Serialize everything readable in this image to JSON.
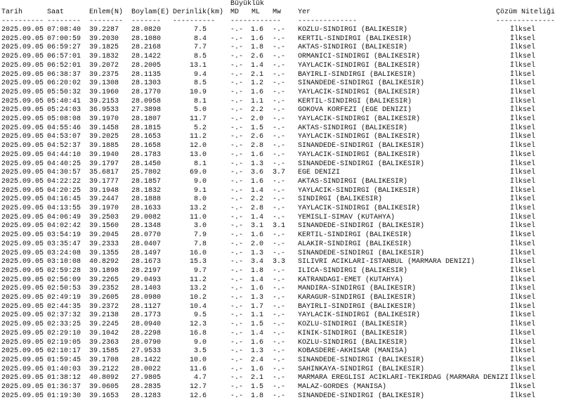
{
  "header": {
    "group_title": "Büyüklük",
    "columns": {
      "tarih": "Tarih",
      "saat": "Saat",
      "enlem": "Enlem(N)",
      "boylam": "Boylam(E)",
      "derinlik": "Derinlik(km)",
      "md": "MD",
      "ml": "ML",
      "mw": "Mw",
      "yer": "Yer",
      "cozum": "Çözüm Niteliği"
    },
    "dashes": {
      "tarih": "----------",
      "saat": "--------",
      "enlem": "--------",
      "boylam": "-------",
      "derinlik": "----------",
      "mag": "------------",
      "yer": "--------------",
      "cozum": "--------------"
    }
  },
  "rows": [
    [
      "2025.09.05",
      "07:08:40",
      "39.2287",
      "28.0820",
      "7.5",
      "-.-",
      "1.6",
      "-.-",
      "KOZLU-SINDIRGI (BALIKESIR)",
      "İlksel"
    ],
    [
      "2025.09.05",
      "07:00:59",
      "39.2030",
      "28.1080",
      "8.4",
      "-.-",
      "1.6",
      "-.-",
      "KERTIL-SINDIRGI (BALIKESIR)",
      "İlksel"
    ],
    [
      "2025.09.05",
      "06:59:27",
      "39.1825",
      "28.2168",
      "7.7",
      "-.-",
      "1.8",
      "-.-",
      "AKTAS-SINDIRGI (BALIKESIR)",
      "İlksel"
    ],
    [
      "2025.09.05",
      "06:57:01",
      "39.1832",
      "28.1422",
      "8.5",
      "-.-",
      "2.6",
      "-.-",
      "ORMANICI-SINDIRGI (BALIKESIR)",
      "İlksel"
    ],
    [
      "2025.09.05",
      "06:52:01",
      "39.2072",
      "28.2005",
      "13.1",
      "-.-",
      "1.4",
      "-.-",
      "YAYLACIK-SINDIRGI (BALIKESIR)",
      "İlksel"
    ],
    [
      "2025.09.05",
      "06:38:37",
      "39.2375",
      "28.1135",
      "9.4",
      "-.-",
      "2.1",
      "-.-",
      "BAYIRLI-SINDIRGI (BALIKESIR)",
      "İlksel"
    ],
    [
      "2025.09.05",
      "06:20:02",
      "39.1308",
      "28.1303",
      "8.5",
      "-.-",
      "1.2",
      "-.-",
      "SINANDEDE-SINDIRGI (BALIKESIR)",
      "İlksel"
    ],
    [
      "2025.09.05",
      "05:50:32",
      "39.1960",
      "28.1770",
      "10.9",
      "-.-",
      "1.6",
      "-.-",
      "YAYLACIK-SINDIRGI (BALIKESIR)",
      "İlksel"
    ],
    [
      "2025.09.05",
      "05:40:41",
      "39.2153",
      "28.0958",
      "8.1",
      "-.-",
      "1.1",
      "-.-",
      "KERTIL-SINDIRGI (BALIKESIR)",
      "İlksel"
    ],
    [
      "2025.09.05",
      "05:24:03",
      "36.9533",
      "27.3898",
      "5.0",
      "-.-",
      "2.2",
      "-.-",
      "GOKOVA KORFEZI (EGE DENIZI)",
      "İlksel"
    ],
    [
      "2025.09.05",
      "05:08:08",
      "39.1970",
      "28.1807",
      "11.7",
      "-.-",
      "2.0",
      "-.-",
      "YAYLACIK-SINDIRGI (BALIKESIR)",
      "İlksel"
    ],
    [
      "2025.09.05",
      "04:55:46",
      "39.1458",
      "28.1815",
      "5.2",
      "-.-",
      "1.5",
      "-.-",
      "AKTAS-SINDIRGI (BALIKESIR)",
      "İlksel"
    ],
    [
      "2025.09.05",
      "04:53:07",
      "39.2025",
      "28.1653",
      "11.2",
      "-.-",
      "2.6",
      "-.-",
      "YAYLACIK-SINDIRGI (BALIKESIR)",
      "İlksel"
    ],
    [
      "2025.09.05",
      "04:52:37",
      "39.1885",
      "28.1658",
      "12.0",
      "-.-",
      "2.8",
      "-.-",
      "SINANDEDE-SINDIRGI (BALIKESIR)",
      "İlksel"
    ],
    [
      "2025.09.05",
      "04:44:10",
      "39.1940",
      "28.1783",
      "13.0",
      "-.-",
      "1.6",
      "-.-",
      "YAYLACIK-SINDIRGI (BALIKESIR)",
      "İlksel"
    ],
    [
      "2025.09.05",
      "04:40:25",
      "39.1797",
      "28.1450",
      "8.1",
      "-.-",
      "1.3",
      "-.-",
      "SINANDEDE-SINDIRGI (BALIKESIR)",
      "İlksel"
    ],
    [
      "2025.09.05",
      "04:30:57",
      "35.6817",
      "25.7802",
      "69.0",
      "-.-",
      "3.6",
      "3.7",
      "EGE DENIZI",
      "İlksel"
    ],
    [
      "2025.09.05",
      "04:22:22",
      "39.1777",
      "28.1857",
      "9.0",
      "-.-",
      "1.6",
      "-.-",
      "AKTAS-SINDIRGI (BALIKESIR)",
      "İlksel"
    ],
    [
      "2025.09.05",
      "04:20:25",
      "39.1948",
      "28.1832",
      "9.1",
      "-.-",
      "1.4",
      "-.-",
      "YAYLACIK-SINDIRGI (BALIKESIR)",
      "İlksel"
    ],
    [
      "2025.09.05",
      "04:16:45",
      "39.2447",
      "28.1888",
      "8.0",
      "-.-",
      "2.2",
      "-.-",
      "SINDIRGI (BALIKESIR)",
      "İlksel"
    ],
    [
      "2025.09.05",
      "04:13:55",
      "39.1970",
      "28.1633",
      "13.2",
      "-.-",
      "2.8",
      "-.-",
      "YAYLACIK-SINDIRGI (BALIKESIR)",
      "İlksel"
    ],
    [
      "2025.09.05",
      "04:06:49",
      "39.2503",
      "29.0082",
      "11.0",
      "-.-",
      "1.4",
      "-.-",
      "YEMISLI-SIMAV (KUTAHYA)",
      "İlksel"
    ],
    [
      "2025.09.05",
      "04:02:42",
      "39.1560",
      "28.1348",
      "3.0",
      "-.-",
      "3.1",
      "3.1",
      "SINANDEDE-SINDIRGI (BALIKESIR)",
      "İlksel"
    ],
    [
      "2025.09.05",
      "03:54:19",
      "39.2045",
      "28.0770",
      "7.9",
      "-.-",
      "1.6",
      "-.-",
      "KERTIL-SINDIRGI (BALIKESIR)",
      "İlksel"
    ],
    [
      "2025.09.05",
      "03:35:47",
      "39.2333",
      "28.0407",
      "7.8",
      "-.-",
      "2.0",
      "-.-",
      "ALAKIR-SINDIRGI (BALIKESIR)",
      "İlksel"
    ],
    [
      "2025.09.05",
      "03:24:08",
      "39.1355",
      "28.1497",
      "16.0",
      "-.-",
      "1.3",
      "-.-",
      "SINANDEDE-SINDIRGI (BALIKESIR)",
      "İlksel"
    ],
    [
      "2025.09.05",
      "03:10:08",
      "40.8292",
      "28.1673",
      "15.3",
      "-.-",
      "3.4",
      "3.3",
      "SILIVRI ACIKLARI-ISTANBUL (MARMARA DENIZI)",
      "İlksel"
    ],
    [
      "2025.09.05",
      "02:59:28",
      "39.1898",
      "28.2197",
      "9.7",
      "-.-",
      "1.8",
      "-.-",
      "ILICA-SINDIRGI (BALIKESIR)",
      "İlksel"
    ],
    [
      "2025.09.05",
      "02:56:09",
      "39.2265",
      "29.0493",
      "11.2",
      "-.-",
      "1.4",
      "-.-",
      "KATRANDAGI-EMET (KUTAHYA)",
      "İlksel"
    ],
    [
      "2025.09.05",
      "02:50:53",
      "39.2352",
      "28.1403",
      "13.2",
      "-.-",
      "1.6",
      "-.-",
      "MANDIRA-SINDIRGI (BALIKESIR)",
      "İlksel"
    ],
    [
      "2025.09.05",
      "02:49:19",
      "39.2605",
      "28.0980",
      "10.2",
      "-.-",
      "1.3",
      "-.-",
      "KARAGUR-SINDIRGI (BALIKESIR)",
      "İlksel"
    ],
    [
      "2025.09.05",
      "02:44:35",
      "39.2372",
      "28.1127",
      "10.4",
      "-.-",
      "1.7",
      "-.-",
      "BAYIRLI-SINDIRGI (BALIKESIR)",
      "İlksel"
    ],
    [
      "2025.09.05",
      "02:37:32",
      "39.2138",
      "28.1773",
      "9.5",
      "-.-",
      "1.1",
      "-.-",
      "YAYLACIK-SINDIRGI (BALIKESIR)",
      "İlksel"
    ],
    [
      "2025.09.05",
      "02:33:25",
      "39.2245",
      "28.0940",
      "12.3",
      "-.-",
      "1.5",
      "-.-",
      "KOZLU-SINDIRGI (BALIKESIR)",
      "İlksel"
    ],
    [
      "2025.09.05",
      "02:29:10",
      "39.1042",
      "28.2298",
      "16.8",
      "-.-",
      "1.4",
      "-.-",
      "KINIK-SINDIRGI (BALIKESIR)",
      "İlksel"
    ],
    [
      "2025.09.05",
      "02:19:05",
      "39.2363",
      "28.0790",
      "9.0",
      "-.-",
      "1.6",
      "-.-",
      "KOZLU-SINDIRGI (BALIKESIR)",
      "İlksel"
    ],
    [
      "2025.09.05",
      "02:10:17",
      "39.1585",
      "27.9533",
      "3.5",
      "-.-",
      "1.3",
      "-.-",
      "KOBASDERE-AKHISAR (MANISA)",
      "İlksel"
    ],
    [
      "2025.09.05",
      "01:59:45",
      "39.1708",
      "28.1422",
      "10.0",
      "-.-",
      "2.4",
      "-.-",
      "SINANDEDE-SINDIRGI (BALIKESIR)",
      "İlksel"
    ],
    [
      "2025.09.05",
      "01:40:03",
      "39.2122",
      "28.0022",
      "11.6",
      "-.-",
      "1.6",
      "-.-",
      "SAHINKAYA-SINDIRGI (BALIKESIR)",
      "İlksel"
    ],
    [
      "2025.09.05",
      "01:38:12",
      "40.8092",
      "27.9805",
      "4.7",
      "-.-",
      "2.1",
      "-.-",
      "MARMARA EREGLISI ACIKLARI-TEKIRDAG (MARMARA DENIZI",
      "İlksel"
    ],
    [
      "2025.09.05",
      "01:36:37",
      "39.0605",
      "28.2835",
      "12.7",
      "-.-",
      "1.5",
      "-.-",
      "MALAZ-GORDES (MANISA)",
      "İlksel"
    ],
    [
      "2025.09.05",
      "01:19:30",
      "39.1653",
      "28.1283",
      "12.6",
      "-.-",
      "1.8",
      "-.-",
      "SINANDEDE-SINDIRGI (BALIKESIR)",
      "İlksel"
    ]
  ]
}
